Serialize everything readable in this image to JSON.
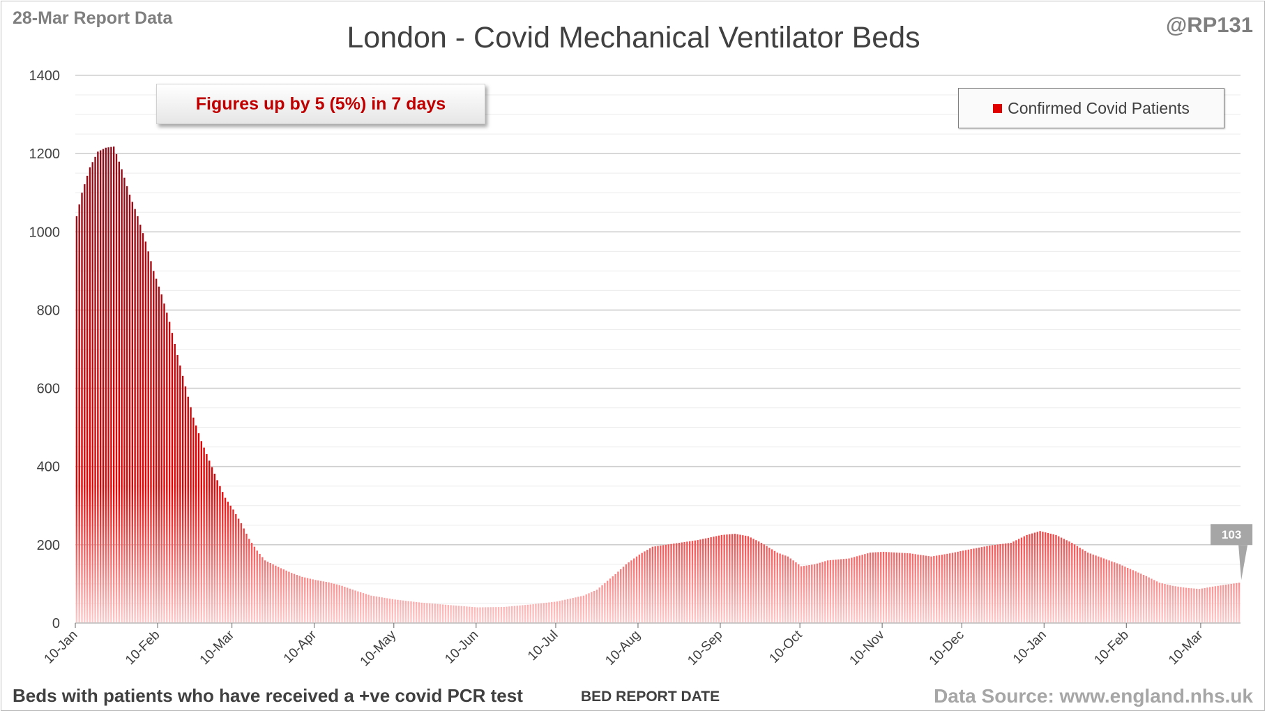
{
  "header": {
    "report_label": "28-Mar Report Data",
    "handle": "@RP131"
  },
  "annotation": "Figures up by 5 (5%) in 7 days",
  "legend": {
    "label": "Confirmed Covid Patients",
    "color": "#e00000"
  },
  "footer": {
    "footnote": "Beds with patients who have received a +ve covid PCR test",
    "source": "Data Source: www.england.nhs.uk"
  },
  "chart_data": {
    "type": "bar",
    "title": "London - Covid Mechanical Ventilator Beds",
    "xlabel": "BED REPORT DATE",
    "ylabel": "",
    "ylim": [
      0,
      1400
    ],
    "ytick_step": 200,
    "minor_grid_step": 50,
    "grid": true,
    "legend_position": "top-right",
    "colors": {
      "bar_top": "#e60000",
      "bar_peak": "#8b0d1a",
      "bar_base": "#ffcccc"
    },
    "x_tick_labels": [
      "10-Jan",
      "10-Feb",
      "10-Mar",
      "10-Apr",
      "10-May",
      "10-Jun",
      "10-Jul",
      "10-Aug",
      "10-Sep",
      "10-Oct",
      "10-Nov",
      "10-Dec",
      "10-Jan",
      "10-Feb",
      "10-Mar"
    ],
    "x_start": "2021-01-10",
    "x_end": "2022-03-24",
    "last_value_label": "103",
    "series": [
      {
        "name": "Confirmed Covid Patients",
        "color": "#e00000",
        "points": [
          [
            "2021-01-10",
            1040
          ],
          [
            "2021-01-12",
            1100
          ],
          [
            "2021-01-15",
            1165
          ],
          [
            "2021-01-18",
            1205
          ],
          [
            "2021-01-21",
            1215
          ],
          [
            "2021-01-24",
            1218
          ],
          [
            "2021-01-27",
            1160
          ],
          [
            "2021-01-30",
            1095
          ],
          [
            "2021-02-02",
            1040
          ],
          [
            "2021-02-05",
            975
          ],
          [
            "2021-02-08",
            900
          ],
          [
            "2021-02-11",
            840
          ],
          [
            "2021-02-14",
            770
          ],
          [
            "2021-02-17",
            685
          ],
          [
            "2021-02-20",
            605
          ],
          [
            "2021-02-23",
            525
          ],
          [
            "2021-02-26",
            465
          ],
          [
            "2021-03-01",
            415
          ],
          [
            "2021-03-04",
            365
          ],
          [
            "2021-03-07",
            320
          ],
          [
            "2021-03-10",
            290
          ],
          [
            "2021-03-13",
            255
          ],
          [
            "2021-03-16",
            215
          ],
          [
            "2021-03-19",
            185
          ],
          [
            "2021-03-22",
            160
          ],
          [
            "2021-03-25",
            150
          ],
          [
            "2021-03-28",
            140
          ],
          [
            "2021-04-01",
            128
          ],
          [
            "2021-04-05",
            118
          ],
          [
            "2021-04-10",
            110
          ],
          [
            "2021-04-15",
            104
          ],
          [
            "2021-04-20",
            95
          ],
          [
            "2021-04-25",
            83
          ],
          [
            "2021-05-01",
            70
          ],
          [
            "2021-05-10",
            60
          ],
          [
            "2021-05-20",
            52
          ],
          [
            "2021-06-01",
            45
          ],
          [
            "2021-06-10",
            40
          ],
          [
            "2021-06-20",
            41
          ],
          [
            "2021-07-01",
            48
          ],
          [
            "2021-07-10",
            55
          ],
          [
            "2021-07-20",
            70
          ],
          [
            "2021-07-25",
            85
          ],
          [
            "2021-08-01",
            125
          ],
          [
            "2021-08-05",
            150
          ],
          [
            "2021-08-10",
            175
          ],
          [
            "2021-08-15",
            195
          ],
          [
            "2021-08-20",
            200
          ],
          [
            "2021-08-25",
            205
          ],
          [
            "2021-09-01",
            212
          ],
          [
            "2021-09-10",
            225
          ],
          [
            "2021-09-15",
            228
          ],
          [
            "2021-09-20",
            222
          ],
          [
            "2021-09-25",
            205
          ],
          [
            "2021-10-01",
            180
          ],
          [
            "2021-10-05",
            170
          ],
          [
            "2021-10-10",
            145
          ],
          [
            "2021-10-15",
            150
          ],
          [
            "2021-10-20",
            160
          ],
          [
            "2021-10-28",
            165
          ],
          [
            "2021-11-05",
            180
          ],
          [
            "2021-11-10",
            182
          ],
          [
            "2021-11-20",
            178
          ],
          [
            "2021-11-28",
            170
          ],
          [
            "2021-12-05",
            178
          ],
          [
            "2021-12-10",
            185
          ],
          [
            "2021-12-20",
            198
          ],
          [
            "2021-12-28",
            205
          ],
          [
            "2022-01-03",
            225
          ],
          [
            "2022-01-08",
            235
          ],
          [
            "2022-01-14",
            225
          ],
          [
            "2022-01-20",
            205
          ],
          [
            "2022-01-26",
            180
          ],
          [
            "2022-02-01",
            165
          ],
          [
            "2022-02-07",
            150
          ],
          [
            "2022-02-12",
            135
          ],
          [
            "2022-02-17",
            120
          ],
          [
            "2022-02-22",
            103
          ],
          [
            "2022-02-27",
            95
          ],
          [
            "2022-03-04",
            90
          ],
          [
            "2022-03-09",
            87
          ],
          [
            "2022-03-14",
            93
          ],
          [
            "2022-03-19",
            98
          ],
          [
            "2022-03-24",
            103
          ]
        ]
      }
    ]
  }
}
